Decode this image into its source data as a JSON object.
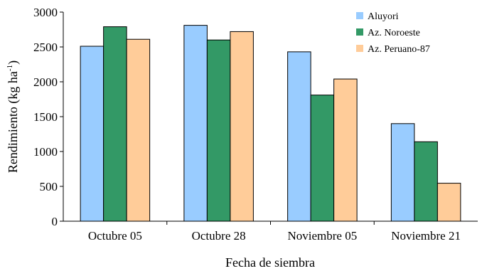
{
  "chart_data": {
    "type": "bar",
    "title": "",
    "xlabel": "Fecha de siembra",
    "ylabel": {
      "main": "Rendimiento (kg ha",
      "sup": "-1",
      "close": ")"
    },
    "ylim": [
      0,
      3000
    ],
    "yticks": [
      0,
      500,
      1000,
      1500,
      2000,
      2500,
      3000
    ],
    "grid": false,
    "legend_position": "top-right",
    "categories": [
      "Octubre 05",
      "Octubre 28",
      "Noviembre 05",
      "Noviembre 21"
    ],
    "series": [
      {
        "name": "Aluyori",
        "color": "#99ccff",
        "values": [
          2510,
          2810,
          2430,
          1400
        ]
      },
      {
        "name": "Az. Noroeste",
        "color": "#339966",
        "values": [
          2790,
          2600,
          1810,
          1140
        ]
      },
      {
        "name": "Az. Peruano-87",
        "color": "#ffcc99",
        "values": [
          2610,
          2720,
          2040,
          545
        ]
      }
    ]
  }
}
